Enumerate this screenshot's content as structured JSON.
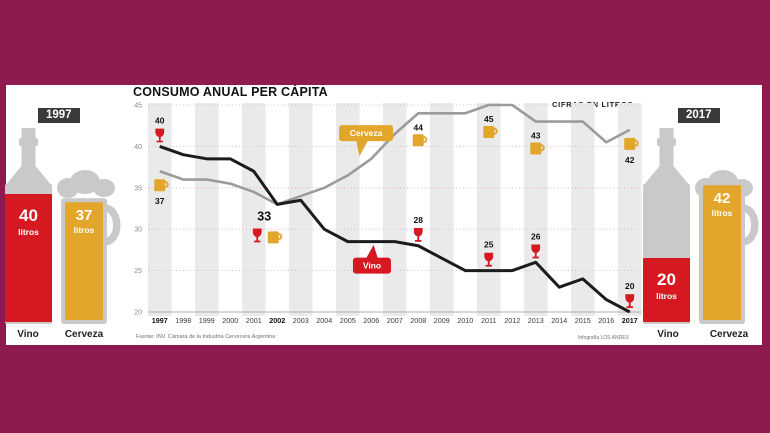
{
  "page": {
    "title": "CONSUMO ANUAL PER CÁPITA",
    "units_note": "CIFRAS EN LITROS",
    "source": "Fuente: INV. Cámara de la Industria Cervecera Argentina",
    "credit": "Infografía LOS ANDES"
  },
  "colors": {
    "background": "#8E1A50",
    "panel": "#FFFFFF",
    "wine_red": "#D61920",
    "beer_gold": "#E2A62A",
    "vino_line": "#1C1C1C",
    "cerveza_line": "#9B9B9B",
    "band_gray": "#EAEAEA",
    "badge_dark": "#3A3A3A",
    "figure_gray": "#C9C9C9"
  },
  "comparison_1997": {
    "year_badge": "1997",
    "wine": {
      "value": "40",
      "unit": "litros",
      "label": "Vino"
    },
    "beer": {
      "value": "37",
      "unit": "litros",
      "label": "Cerveza"
    }
  },
  "comparison_2017": {
    "year_badge": "2017",
    "wine": {
      "value": "20",
      "unit": "litros",
      "label": "Vino"
    },
    "beer": {
      "value": "42",
      "unit": "litros",
      "label": "Cerveza"
    }
  },
  "chart_data": {
    "type": "line",
    "title": "CONSUMO ANUAL PER CÁPITA",
    "units_note": "CIFRAS EN LITROS",
    "x": [
      1997,
      1998,
      1999,
      2000,
      2001,
      2002,
      2003,
      2004,
      2005,
      2006,
      2007,
      2008,
      2009,
      2010,
      2011,
      2012,
      2013,
      2014,
      2015,
      2016,
      2017
    ],
    "ylim": [
      20,
      45
    ],
    "yticks": [
      20,
      25,
      30,
      35,
      40,
      45
    ],
    "bold_x_labels": [
      1997,
      2002,
      2017
    ],
    "grid": "dotted horizontal, alternating vertical year bands",
    "series": [
      {
        "name": "Vino",
        "color": "#1C1C1C",
        "width": 3,
        "values": [
          40,
          39,
          38.5,
          38.5,
          37,
          33,
          33.5,
          30,
          28.5,
          28.5,
          28.5,
          28,
          26.5,
          25,
          25,
          25,
          26,
          23,
          24,
          21.5,
          20
        ]
      },
      {
        "name": "Cerveza",
        "color": "#9B9B9B",
        "width": 2.6,
        "values": [
          37,
          36,
          36,
          35.5,
          34.5,
          33,
          34,
          35,
          36.5,
          38.5,
          41.5,
          44,
          44,
          44,
          45,
          45,
          43,
          43,
          43,
          40.5,
          42
        ]
      }
    ],
    "point_labels": {
      "vino": [
        {
          "year": 1997,
          "text": "40"
        },
        {
          "year": 2008,
          "text": "28"
        },
        {
          "year": 2011,
          "text": "25"
        },
        {
          "year": 2013,
          "text": "26"
        },
        {
          "year": 2017,
          "text": "20"
        }
      ],
      "cerveza": [
        {
          "year": 1997,
          "text": "37",
          "order": "icon-num"
        },
        {
          "year": 2008,
          "text": "44",
          "order": "num-icon"
        },
        {
          "year": 2011,
          "text": "45",
          "order": "num-icon"
        },
        {
          "year": 2013,
          "text": "43",
          "order": "num-icon"
        },
        {
          "year": 2017,
          "text": "42",
          "order": "icon-num"
        }
      ],
      "crossing": {
        "year": 2002,
        "text": "33"
      }
    },
    "series_labels": [
      {
        "text": "Cerveza",
        "bg": "#E2A62A",
        "cx_year": 2005.78,
        "cy_value": 41.6,
        "tail_year": 2005.5,
        "tail_value": 38.8,
        "width": 54
      },
      {
        "text": "Vino",
        "bg": "#D61920",
        "cx_year": 2006.03,
        "cy_value": 25.6,
        "tail_year": 2006.1,
        "tail_value": 28.1,
        "width": 38
      }
    ]
  }
}
